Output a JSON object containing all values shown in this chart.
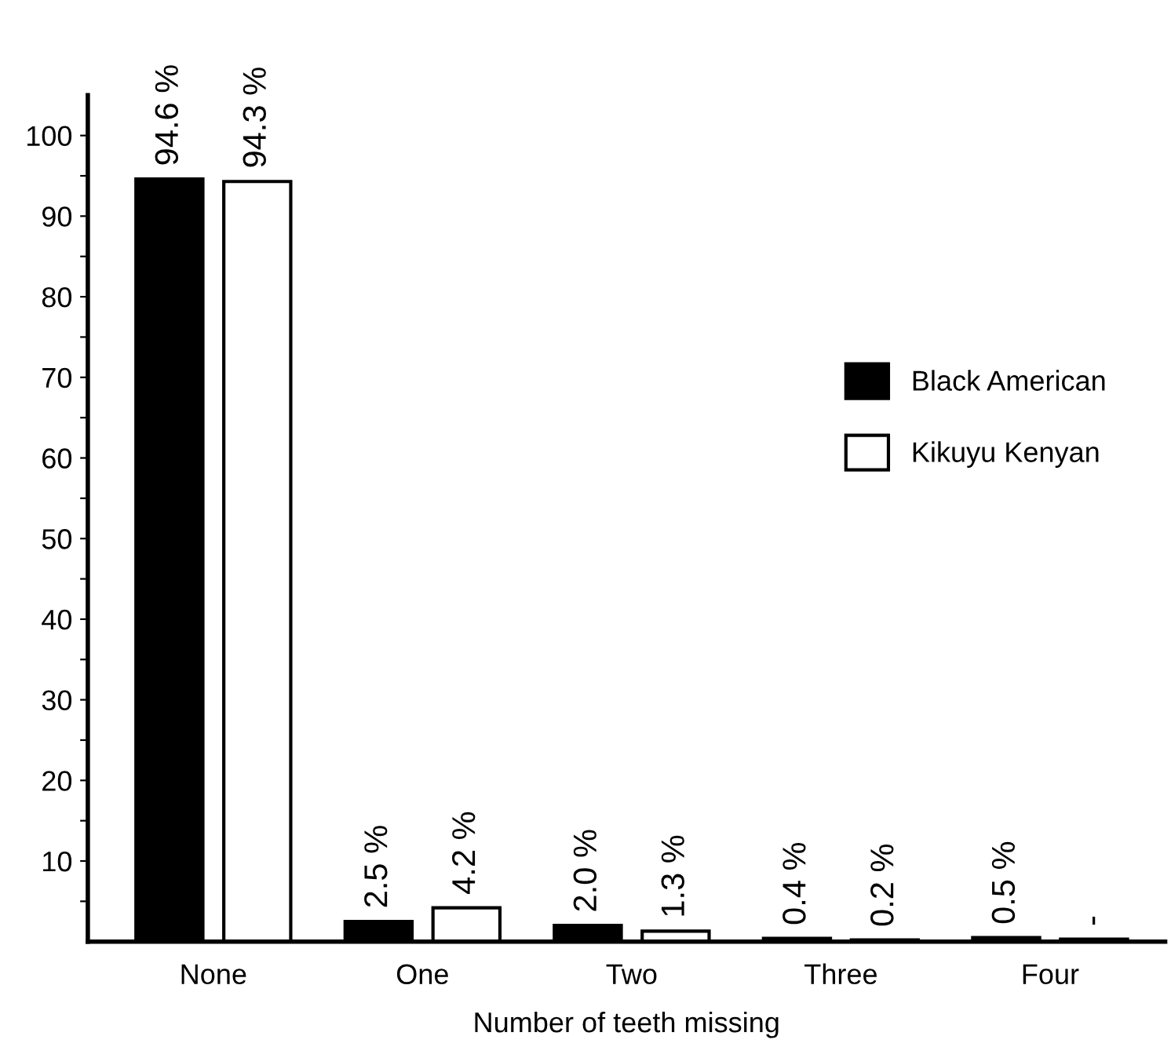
{
  "chart_data": {
    "type": "bar",
    "xlabel": "Number of teeth missing",
    "categories": [
      "None",
      "One",
      "Two",
      "Three",
      "Four"
    ],
    "series": [
      {
        "name": "Black American",
        "color": "#000000",
        "values": [
          94.6,
          2.5,
          2.0,
          0.4,
          0.5
        ],
        "value_labels": [
          "94.6 %",
          "2.5 %",
          "2.0 %",
          "0.4 %",
          "0.5 %"
        ]
      },
      {
        "name": "Kikuyu Kenyan",
        "color": "#ffffff",
        "values": [
          94.3,
          4.2,
          1.3,
          0.2,
          0.3
        ],
        "value_labels": [
          "94.3 %",
          "4.2 %",
          "1.3 %",
          "0.2 %",
          "-"
        ]
      }
    ],
    "ylim": [
      0,
      105
    ],
    "yticks": [
      {
        "value": 5,
        "label": null
      },
      10,
      {
        "value": 15,
        "label": null
      },
      20,
      {
        "value": 25,
        "label": null
      },
      30,
      {
        "value": 35,
        "label": null
      },
      40,
      {
        "value": 45,
        "label": null
      },
      50,
      {
        "value": 55,
        "label": null
      },
      60,
      {
        "value": 65,
        "label": null
      },
      70,
      {
        "value": 75,
        "label": null
      },
      80,
      {
        "value": 85,
        "label": null
      },
      90,
      {
        "value": 95,
        "label": null
      },
      100
    ],
    "grid": false,
    "legend": "right"
  }
}
